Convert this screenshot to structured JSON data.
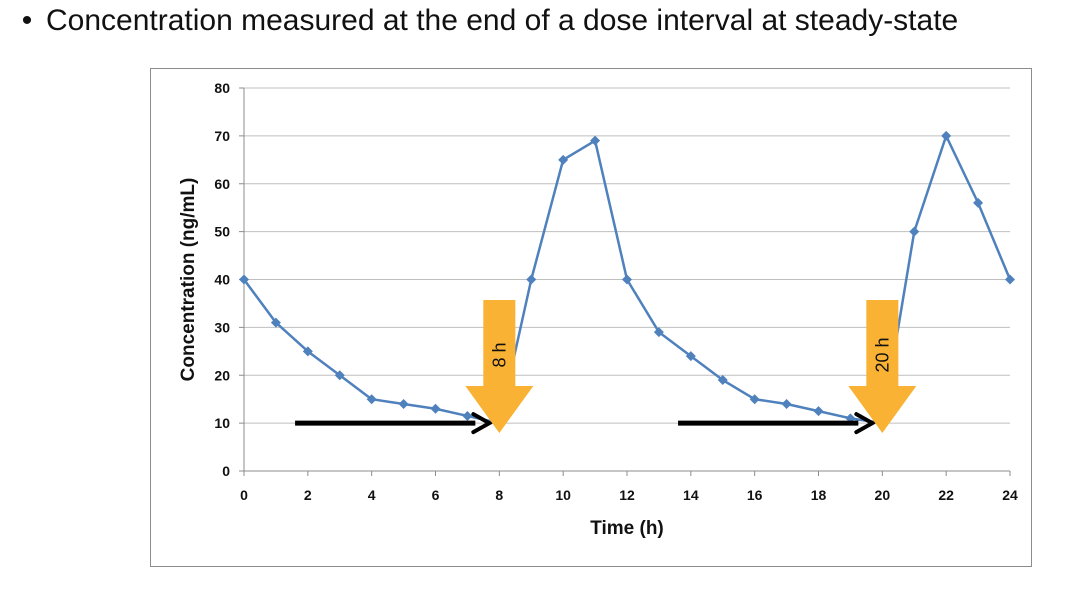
{
  "slide": {
    "bullet": "•",
    "text": "Concentration measured at the end of a dose interval at steady-state"
  },
  "colors": {
    "series": "#4f81bd",
    "dose_arrow": "#f9b233",
    "interval_arrow": "#000000",
    "grid": "#bfbfbf"
  },
  "chart_data": {
    "type": "line",
    "xlabel": "Time (h)",
    "ylabel": "Concentration (ng/mL)",
    "xlim": [
      0,
      24
    ],
    "ylim": [
      0,
      80
    ],
    "xticks": [
      0,
      2,
      4,
      6,
      8,
      10,
      12,
      14,
      16,
      18,
      20,
      22,
      24
    ],
    "yticks": [
      0,
      10,
      20,
      30,
      40,
      50,
      60,
      70,
      80
    ],
    "grid": "horizontal",
    "series": [
      {
        "x": [
          0,
          1,
          2,
          3,
          4,
          5,
          6,
          7,
          8,
          9,
          10,
          11,
          12,
          13,
          14,
          15,
          16,
          17,
          18,
          19,
          20,
          21,
          22,
          23,
          24
        ],
        "y": [
          40,
          31,
          25,
          20,
          15,
          14,
          13,
          11.5,
          10,
          40,
          65,
          69,
          40,
          29,
          24,
          19,
          15,
          14,
          12.5,
          11,
          10,
          50,
          70,
          56,
          40
        ]
      }
    ],
    "annotations": [
      {
        "label": "8 h",
        "x": 8
      },
      {
        "label": "20 h",
        "x": 20
      }
    ],
    "interval_arrows": [
      {
        "from": 1.6,
        "to": 8,
        "y": 10
      },
      {
        "from": 13.6,
        "to": 20,
        "y": 10
      }
    ]
  }
}
